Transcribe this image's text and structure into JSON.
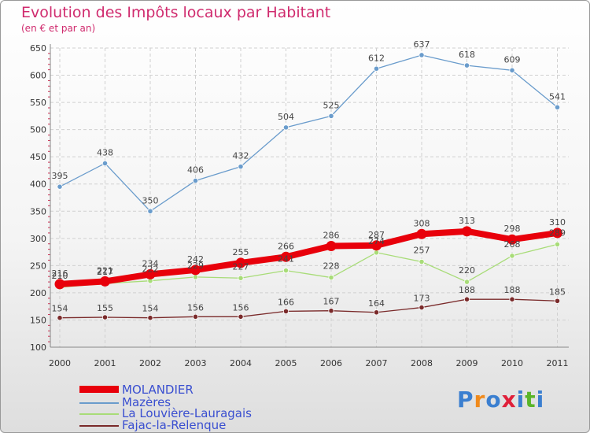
{
  "title": "Evolution des Impôts locaux par Habitant",
  "subtitle": "(en € et par an)",
  "logo_text": "Proxiti",
  "chart_data": {
    "type": "line",
    "x": [
      "2000",
      "2001",
      "2002",
      "2003",
      "2004",
      "2005",
      "2006",
      "2007",
      "2008",
      "2009",
      "2010",
      "2011"
    ],
    "ylim": [
      100,
      650
    ],
    "yticks": [
      100,
      150,
      200,
      250,
      300,
      350,
      400,
      450,
      500,
      550,
      600,
      650
    ],
    "grid": true,
    "legend_position": "bottom-left",
    "series": [
      {
        "name": "MOLANDIER",
        "color": "#e8000b",
        "values": [
          216,
          221,
          234,
          242,
          255,
          266,
          286,
          287,
          308,
          313,
          298,
          310
        ]
      },
      {
        "name": "Mazères",
        "color": "#6a9ccc",
        "values": [
          395,
          438,
          350,
          406,
          432,
          504,
          525,
          612,
          637,
          618,
          609,
          541
        ]
      },
      {
        "name": "La Louvière-Lauragais",
        "color": "#a8dc78",
        "values": [
          210,
          217,
          222,
          229,
          227,
          241,
          228,
          274,
          257,
          220,
          268,
          289
        ]
      },
      {
        "name": "Fajac-la-Relenque",
        "color": "#7a2a2a",
        "values": [
          154,
          155,
          154,
          156,
          156,
          166,
          167,
          164,
          173,
          188,
          188,
          185
        ]
      }
    ]
  }
}
